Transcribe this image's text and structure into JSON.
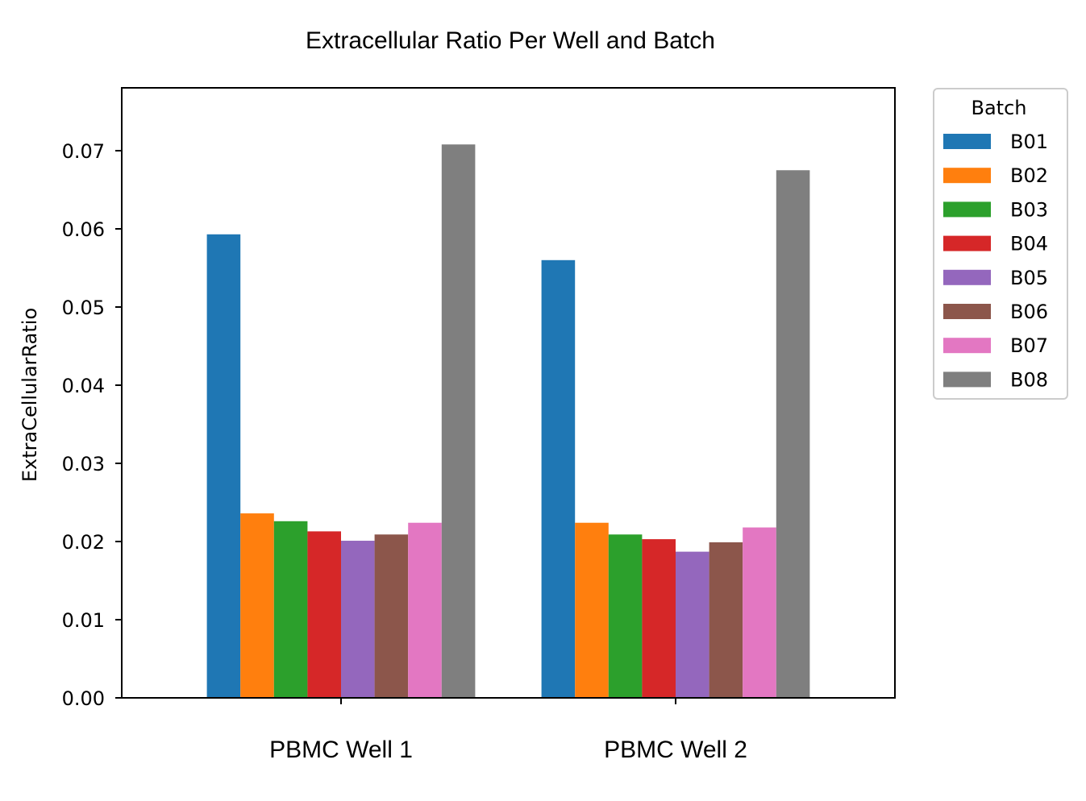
{
  "chart_data": {
    "type": "bar",
    "title": "Extracellular Ratio Per Well and Batch",
    "xlabel": "",
    "ylabel": "ExtraCellularRatio",
    "ylim": [
      0,
      0.078
    ],
    "yticks": [
      "0.00",
      "0.01",
      "0.02",
      "0.03",
      "0.04",
      "0.05",
      "0.06",
      "0.07"
    ],
    "categories": [
      "PBMC Well 1",
      "PBMC Well 2"
    ],
    "legend": {
      "title": "Batch",
      "placement": "outside-top-right"
    },
    "grid": false,
    "series": [
      {
        "name": "B01",
        "color": "#1f77b4",
        "values": [
          0.0593,
          0.056
        ]
      },
      {
        "name": "B02",
        "color": "#ff7f0e",
        "values": [
          0.0236,
          0.0224
        ]
      },
      {
        "name": "B03",
        "color": "#2ca02c",
        "values": [
          0.0226,
          0.0209
        ]
      },
      {
        "name": "B04",
        "color": "#d62728",
        "values": [
          0.0213,
          0.0203
        ]
      },
      {
        "name": "B05",
        "color": "#9467bd",
        "values": [
          0.0201,
          0.0187
        ]
      },
      {
        "name": "B06",
        "color": "#8c564b",
        "values": [
          0.0209,
          0.0199
        ]
      },
      {
        "name": "B07",
        "color": "#e377c2",
        "values": [
          0.0224,
          0.0218
        ]
      },
      {
        "name": "B08",
        "color": "#7f7f7f",
        "values": [
          0.0708,
          0.0675
        ]
      }
    ]
  }
}
